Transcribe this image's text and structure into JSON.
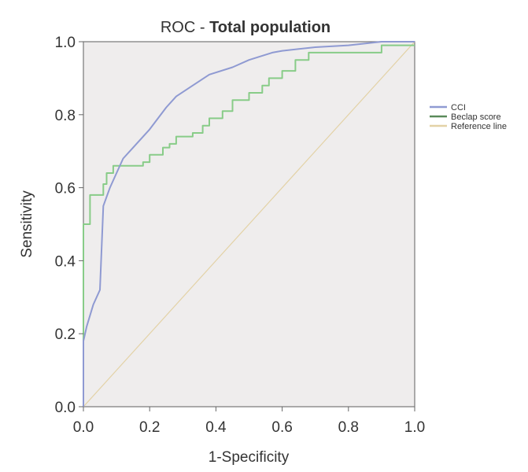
{
  "chart_data": {
    "type": "line",
    "title_prefix": "ROC - ",
    "title_bold": "Total population",
    "xlabel": "1-Specificity",
    "ylabel": "Sensitivity",
    "xlim": [
      0,
      1
    ],
    "ylim": [
      0,
      1
    ],
    "xticks": [
      "0.0",
      "0.2",
      "0.4",
      "0.6",
      "0.8",
      "1.0"
    ],
    "yticks": [
      "0.0",
      "0.2",
      "0.4",
      "0.6",
      "0.8",
      "1.0"
    ],
    "grid": false,
    "legend_position": "right",
    "series": [
      {
        "name": "CCI",
        "color": "#8f9ad2",
        "x": [
          0,
          0,
          0.01,
          0.03,
          0.05,
          0.06,
          0.08,
          0.1,
          0.12,
          0.15,
          0.2,
          0.25,
          0.28,
          0.33,
          0.38,
          0.45,
          0.5,
          0.57,
          0.6,
          0.7,
          0.8,
          0.9,
          1.0
        ],
        "y": [
          0,
          0.18,
          0.22,
          0.28,
          0.32,
          0.55,
          0.6,
          0.64,
          0.68,
          0.71,
          0.76,
          0.82,
          0.85,
          0.88,
          0.91,
          0.93,
          0.95,
          0.97,
          0.975,
          0.985,
          0.99,
          1.0,
          1.0
        ]
      },
      {
        "name": "Beclap score",
        "color": "#88cc88",
        "x": [
          0,
          0,
          0.02,
          0.02,
          0.06,
          0.06,
          0.07,
          0.07,
          0.09,
          0.09,
          0.11,
          0.11,
          0.18,
          0.18,
          0.2,
          0.2,
          0.24,
          0.24,
          0.26,
          0.26,
          0.28,
          0.28,
          0.33,
          0.33,
          0.36,
          0.36,
          0.38,
          0.38,
          0.42,
          0.42,
          0.45,
          0.45,
          0.5,
          0.5,
          0.54,
          0.54,
          0.56,
          0.56,
          0.6,
          0.6,
          0.64,
          0.64,
          0.68,
          0.68,
          0.72,
          0.72,
          0.9,
          0.9,
          1.0
        ],
        "y": [
          0,
          0.5,
          0.5,
          0.58,
          0.58,
          0.61,
          0.61,
          0.64,
          0.64,
          0.66,
          0.66,
          0.66,
          0.66,
          0.67,
          0.67,
          0.69,
          0.69,
          0.71,
          0.71,
          0.72,
          0.72,
          0.74,
          0.74,
          0.75,
          0.75,
          0.77,
          0.77,
          0.79,
          0.79,
          0.81,
          0.81,
          0.84,
          0.84,
          0.86,
          0.86,
          0.88,
          0.88,
          0.9,
          0.9,
          0.92,
          0.92,
          0.95,
          0.95,
          0.97,
          0.97,
          0.97,
          0.97,
          0.99,
          0.99
        ]
      },
      {
        "name": "Reference line",
        "color": "#e3d2a6",
        "x": [
          0,
          1
        ],
        "y": [
          0,
          1
        ]
      }
    ]
  }
}
